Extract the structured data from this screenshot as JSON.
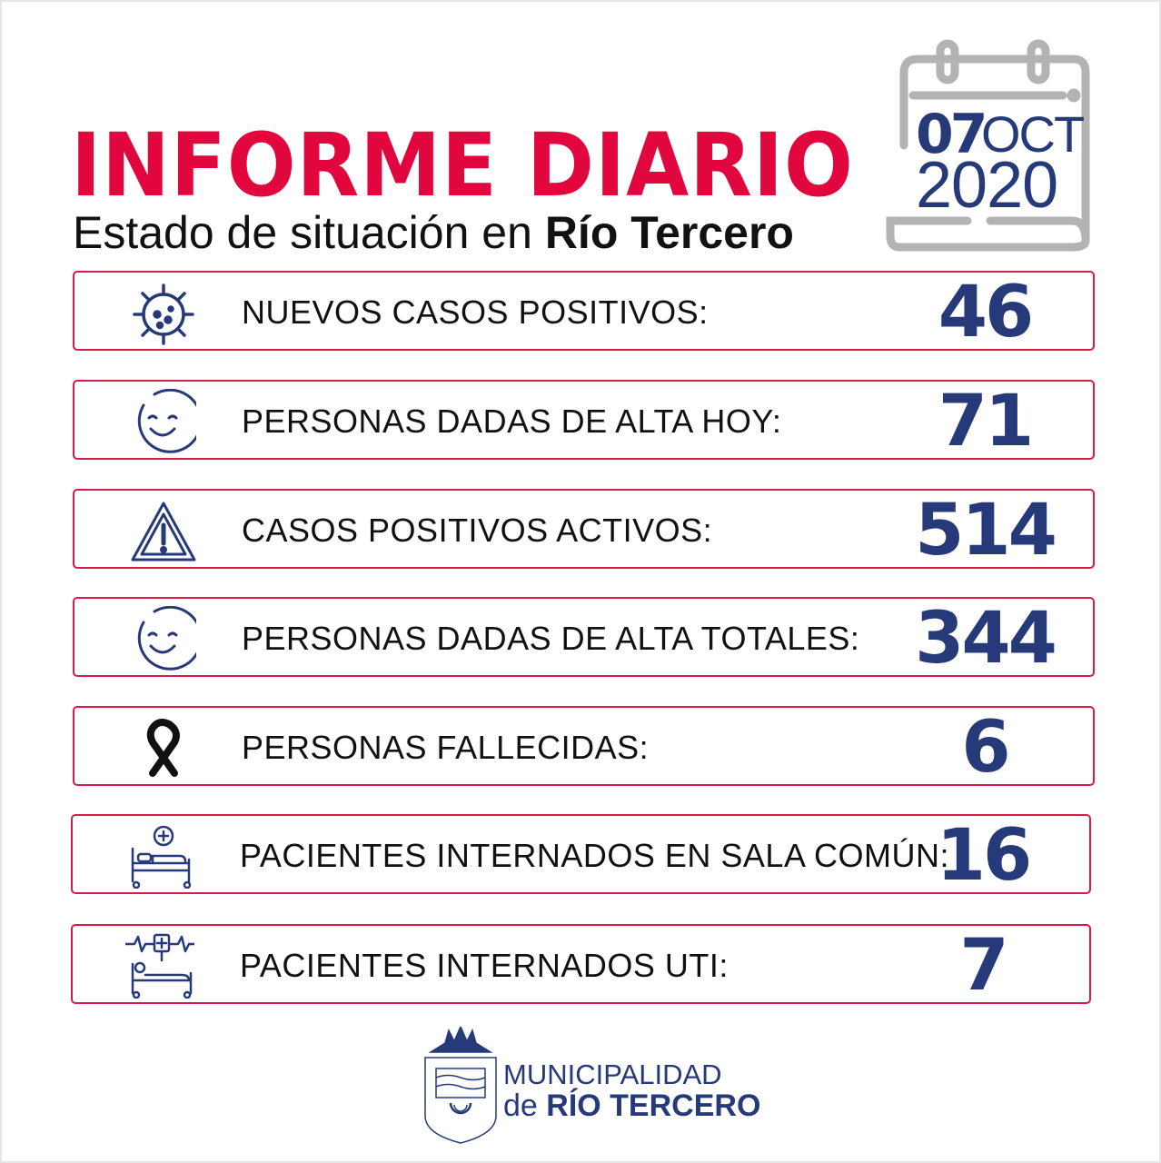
{
  "header": {
    "title": "INFORME DIARIO",
    "subtitle_prefix": "Estado de situación en ",
    "subtitle_city": "Río Tercero"
  },
  "date": {
    "day": "07",
    "month": "OCT",
    "year": "2020",
    "icon": "calendar-icon"
  },
  "rows": [
    {
      "label": "NUEVOS CASOS POSITIVOS:",
      "value": "46",
      "icon": "virus-icon"
    },
    {
      "label": "PERSONAS DADAS DE ALTA HOY:",
      "value": "71",
      "icon": "smiley-icon"
    },
    {
      "label": "CASOS POSITIVOS ACTIVOS:",
      "value": "514",
      "icon": "warning-icon"
    },
    {
      "label": "PERSONAS DADAS DE ALTA TOTALES:",
      "value": "344",
      "icon": "smiley-icon"
    },
    {
      "label": "PERSONAS FALLECIDAS:",
      "value": "6",
      "icon": "mourning-ribbon-icon"
    },
    {
      "label": "PACIENTES INTERNADOS EN SALA COMÚN:",
      "value": "16",
      "icon": "hospital-bed-icon"
    },
    {
      "label": "PACIENTES INTERNADOS UTI:",
      "value": "7",
      "icon": "icu-bed-icon"
    }
  ],
  "footer": {
    "line1": "MUNICIPALIDAD",
    "line2_prefix": "de ",
    "line2_name": "RÍO TERCERO",
    "icon": "coat-of-arms-icon"
  },
  "colors": {
    "title": "#e2063f",
    "accent": "#263a7a",
    "border": "#d81b48",
    "calendar": "#b3b3b3"
  }
}
